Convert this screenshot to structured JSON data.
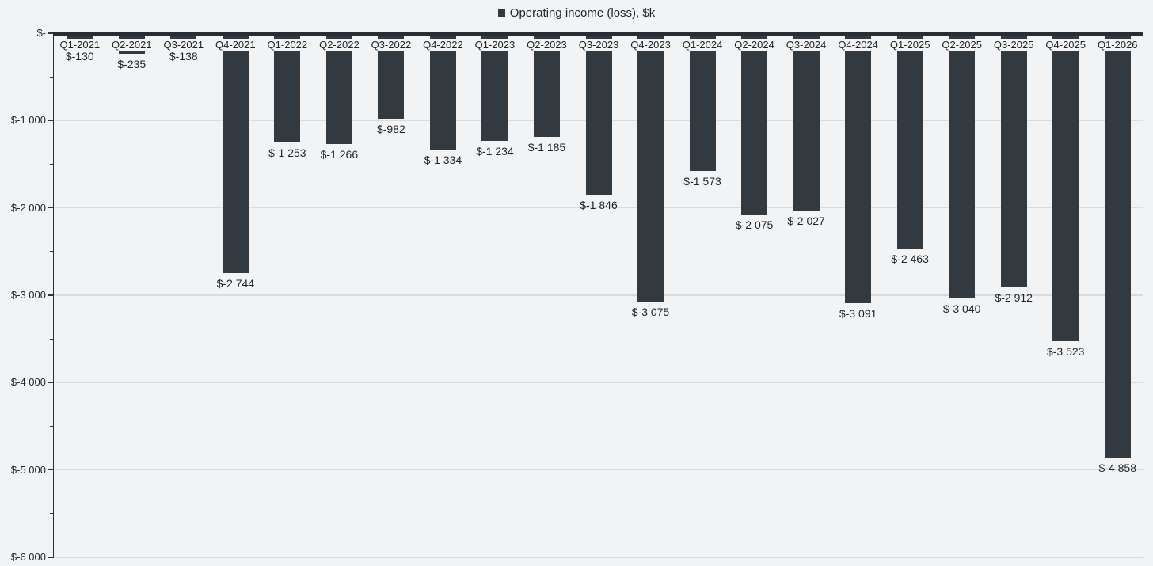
{
  "legend": {
    "label": "Operating income (loss), $k"
  },
  "colors": {
    "bar": "#333a3f",
    "axis_line": "#272d32",
    "tick": "#2f353a",
    "gridline": "#d9dbdc",
    "background": "#f2f3f4",
    "text": "#1f2328"
  },
  "y_axis": {
    "tick_labels": [
      "$-",
      "$-1 000",
      "$-2 000",
      "$-3 000",
      "$-4 000",
      "$-5 000",
      "$-6 000"
    ],
    "major_unit": 1000,
    "minor_unit": 500
  },
  "chart_data": {
    "type": "bar",
    "title": "Operating income (loss), $k",
    "categories": [
      "Q1-2021",
      "Q2-2021",
      "Q3-2021",
      "Q4-2021",
      "Q1-2022",
      "Q2-2022",
      "Q3-2022",
      "Q4-2022",
      "Q1-2023",
      "Q2-2023",
      "Q3-2023",
      "Q4-2023",
      "Q1-2024",
      "Q2-2024",
      "Q3-2024",
      "Q4-2024",
      "Q1-2025",
      "Q2-2025",
      "Q3-2025",
      "Q4-2025",
      "Q1-2026"
    ],
    "values": [
      -130,
      -235,
      -138,
      -2744,
      -1253,
      -1266,
      -982,
      -1334,
      -1234,
      -1185,
      -1846,
      -3075,
      -1573,
      -2075,
      -2027,
      -3091,
      -2463,
      -3040,
      -2912,
      -3523,
      -4858
    ],
    "value_labels": [
      "$-130",
      "$-235",
      "$-138",
      "$-2 744",
      "$-1 253",
      "$-1 266",
      "$-982",
      "$-1 334",
      "$-1 234",
      "$-1 185",
      "$-1 846",
      "$-3 075",
      "$-1 573",
      "$-2 075",
      "$-2 027",
      "$-3 091",
      "$-2 463",
      "$-3 040",
      "$-2 912",
      "$-3 523",
      "$-4 858"
    ],
    "ylim": [
      -6000,
      0
    ],
    "xlabel": "",
    "ylabel": "",
    "grid": true,
    "legend_position": "top",
    "bar_direction": "down"
  }
}
